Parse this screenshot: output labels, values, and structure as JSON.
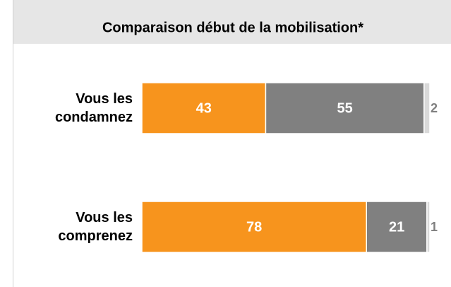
{
  "chart_data": {
    "type": "stacked-bar-horizontal",
    "title": "Comparaison début de la mobilisation*",
    "categories": [
      "Vous les\ncondamnez",
      "Vous les\ncomprenez"
    ],
    "xlim": [
      0,
      100
    ],
    "series": [
      {
        "color": "#f7941d",
        "values": [
          43,
          78
        ]
      },
      {
        "color": "#808080",
        "values": [
          55,
          21
        ]
      },
      {
        "color": "#d9d9d9",
        "values": [
          2,
          1
        ]
      }
    ]
  }
}
